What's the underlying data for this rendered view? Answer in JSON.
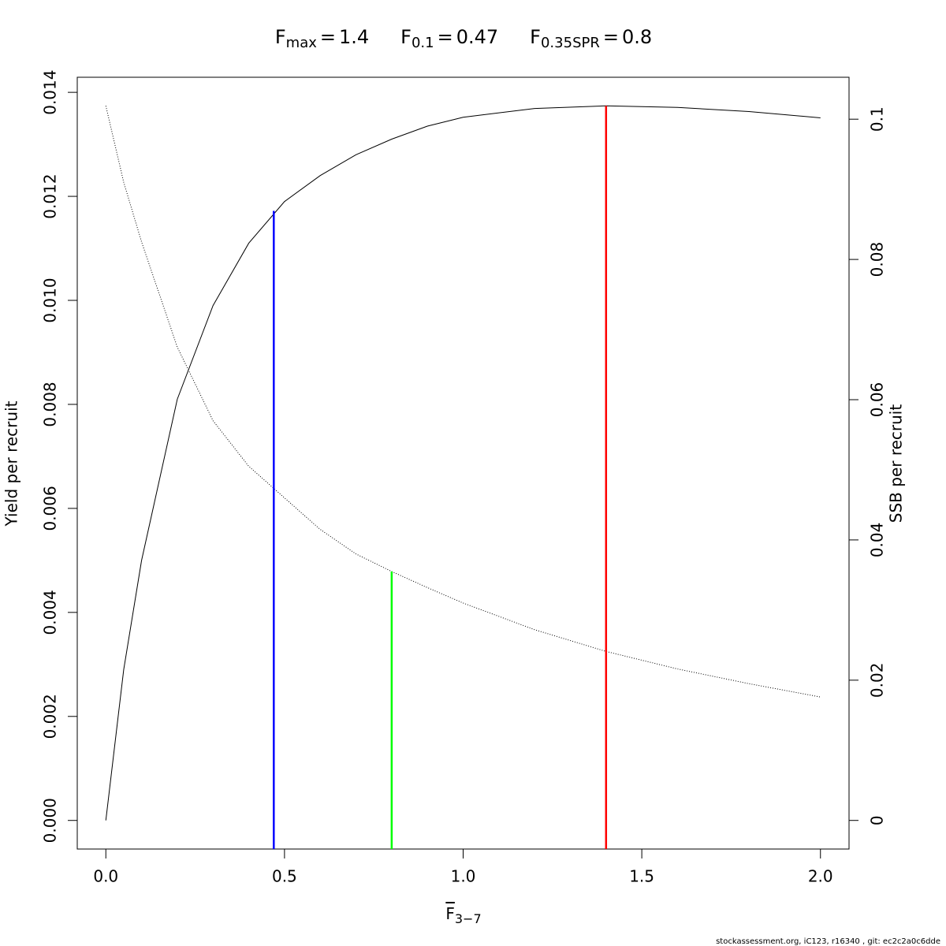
{
  "chart_data": {
    "type": "line",
    "reference_lines": [
      {
        "symbol": "F",
        "subscript": "max",
        "relation": "=",
        "value": 1.4,
        "color": "#ff0000",
        "top": 0.01374,
        "axis": "y"
      },
      {
        "symbol": "F",
        "subscript": "0.1",
        "relation": "=",
        "value": 0.47,
        "color": "#0000ff",
        "top": 0.01172,
        "axis": "y"
      },
      {
        "symbol": "F",
        "subscript": "0.35SPR",
        "relation": "=",
        "value": 0.8,
        "color": "#00ff00",
        "top": 0.0355,
        "axis": "y2"
      }
    ],
    "x_label": {
      "text": "F",
      "subscript": "3−7"
    },
    "y_label": "Yield per recruit",
    "y2_label": "SSB per recruit",
    "footer": "stockassessment.org, iC123, r16340 , git: ec2c2a0c6dde",
    "x": [
      0,
      0.05,
      0.1,
      0.2,
      0.3,
      0.4,
      0.5,
      0.6,
      0.7,
      0.8,
      0.9,
      1.0,
      1.2,
      1.4,
      1.6,
      1.8,
      2.0
    ],
    "series": [
      {
        "color": "#000000",
        "line_style": "solid",
        "axis": "y",
        "values": [
          0,
          0.0029,
          0.005,
          0.0081,
          0.0099,
          0.0111,
          0.0119,
          0.0124,
          0.0128,
          0.0131,
          0.01335,
          0.01352,
          0.01369,
          0.01374,
          0.01371,
          0.01363,
          0.01351
        ]
      },
      {
        "color": "#000000",
        "line_style": "dotted",
        "axis": "y2",
        "values": [
          0.1019,
          0.091,
          0.0825,
          0.0675,
          0.057,
          0.0505,
          0.046,
          0.0415,
          0.038,
          0.0355,
          0.0332,
          0.031,
          0.0272,
          0.0241,
          0.0216,
          0.0195,
          0.0176
        ]
      }
    ],
    "xlim": [
      -0.08,
      2.08
    ],
    "ylim": [
      -0.00055,
      0.01429
    ],
    "y2lim": [
      -0.00408,
      0.10598
    ],
    "xticks": [
      {
        "value": 0,
        "label": "0.0"
      },
      {
        "value": 0.5,
        "label": "0.5"
      },
      {
        "value": 1,
        "label": "1.0"
      },
      {
        "value": 1.5,
        "label": "1.5"
      },
      {
        "value": 2,
        "label": "2.0"
      }
    ],
    "yticks": [
      {
        "value": 0,
        "label": "0.000"
      },
      {
        "value": 0.002,
        "label": "0.002"
      },
      {
        "value": 0.004,
        "label": "0.004"
      },
      {
        "value": 0.006,
        "label": "0.006"
      },
      {
        "value": 0.008,
        "label": "0.008"
      },
      {
        "value": 0.01,
        "label": "0.010"
      },
      {
        "value": 0.012,
        "label": "0.012"
      },
      {
        "value": 0.014,
        "label": "0.014"
      }
    ],
    "y2ticks": [
      0,
      0.02,
      0.04,
      0.06,
      0.08,
      0.1
    ]
  }
}
